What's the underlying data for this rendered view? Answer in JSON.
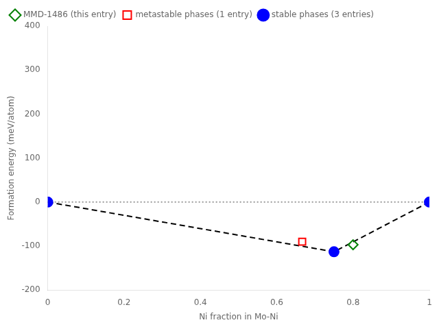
{
  "chart_data": {
    "type": "scatter",
    "xlabel": "Ni fraction in Mo-Ni",
    "ylabel": "Formation energy (meV/atom)",
    "xlim": [
      0.0,
      1.0
    ],
    "ylim": [
      -200,
      400
    ],
    "xticks": [
      0.0,
      0.2,
      0.4,
      0.6,
      0.8,
      1.0
    ],
    "yticks": [
      -200,
      -100,
      0,
      100,
      200,
      300,
      400
    ],
    "grid": false,
    "legend": "upper left",
    "series": [
      {
        "type": "line",
        "line_style": "dotted",
        "color": "#999999",
        "x": [
          0.0,
          1.0
        ],
        "values": [
          0.0,
          0.0
        ]
      },
      {
        "type": "line",
        "line_style": "dashed",
        "color": "#000000",
        "x": [
          0.0,
          0.75,
          1.0
        ],
        "values": [
          0.0,
          -113.0,
          0.0
        ]
      },
      {
        "name": "stable phases (3 entries)",
        "type": "scatter",
        "marker": "circle",
        "color": "#0000ff",
        "x": [
          0.0,
          0.75,
          1.0
        ],
        "values": [
          0.0,
          -113.0,
          0.0
        ]
      },
      {
        "name": "metastable phases (1 entry)",
        "type": "scatter",
        "marker": "open-square",
        "color": "#ff0000",
        "x": [
          0.6667
        ],
        "values": [
          -90.0
        ]
      },
      {
        "name": "MMD-1486 (this entry)",
        "type": "scatter",
        "marker": "open-diamond",
        "color": "#008000",
        "x": [
          0.8
        ],
        "values": [
          -97.0
        ]
      }
    ]
  }
}
